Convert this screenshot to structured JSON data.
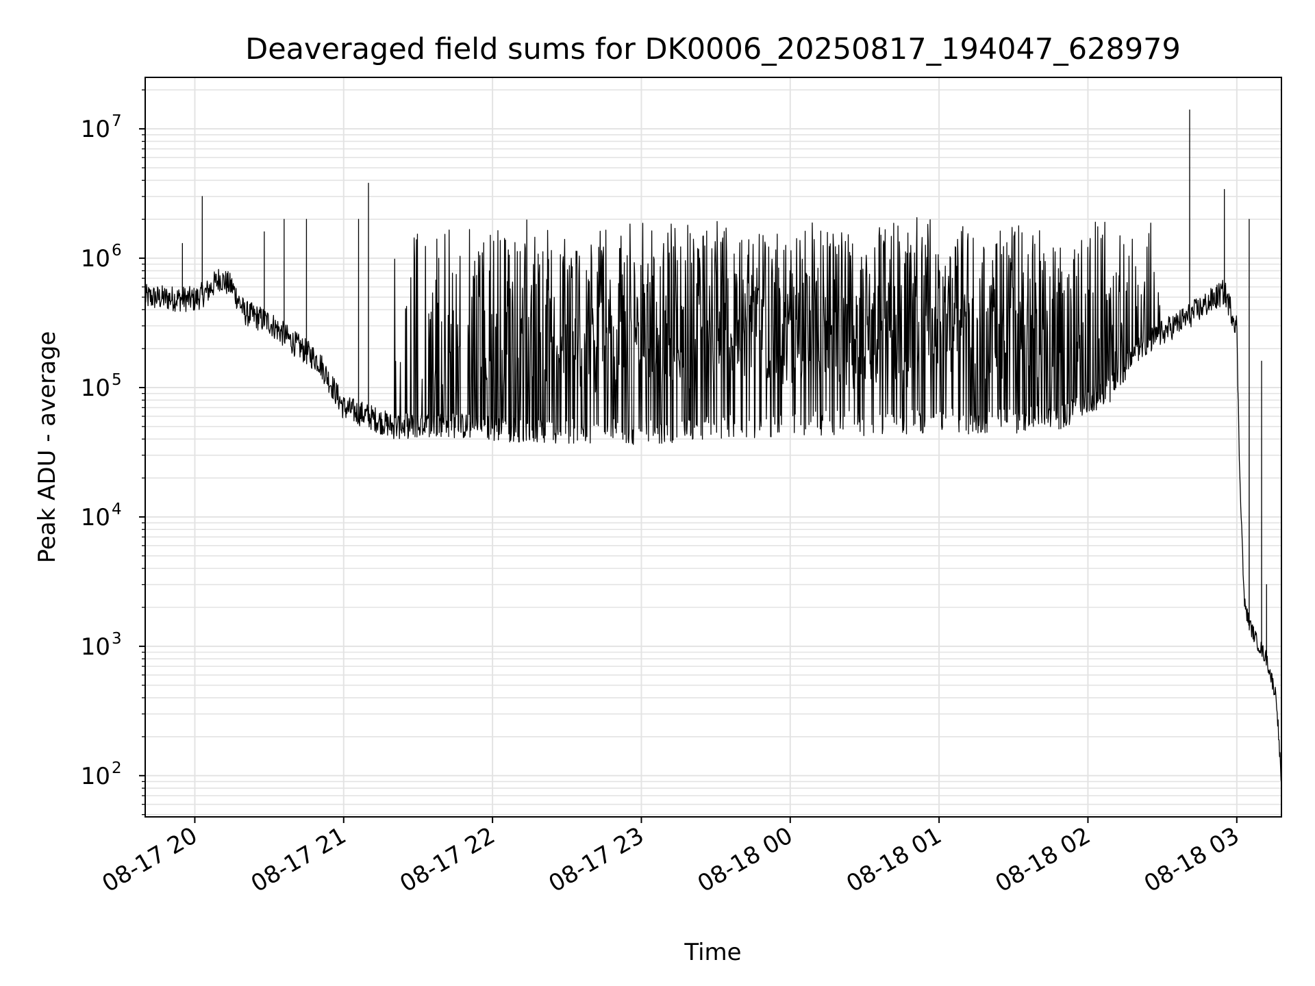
{
  "chart_data": {
    "type": "line",
    "title": "Deaveraged field sums for DK0006_20250817_194047_628979",
    "xlabel": "Time",
    "ylabel": "Peak ADU - average",
    "yscale": "log",
    "ylim": [
      48,
      25000000
    ],
    "xlim": [
      "2025-08-17 19:40",
      "2025-08-18 03:18"
    ],
    "grid": true,
    "line_color": "#000000",
    "grid_color": "#e3e3e3",
    "x_ticks": [
      {
        "label": "08-17 20",
        "time": "2025-08-17 20:00"
      },
      {
        "label": "08-17 21",
        "time": "2025-08-17 21:00"
      },
      {
        "label": "08-17 22",
        "time": "2025-08-17 22:00"
      },
      {
        "label": "08-17 23",
        "time": "2025-08-17 23:00"
      },
      {
        "label": "08-18 00",
        "time": "2025-08-18 00:00"
      },
      {
        "label": "08-18 01",
        "time": "2025-08-18 01:00"
      },
      {
        "label": "08-18 02",
        "time": "2025-08-18 02:00"
      },
      {
        "label": "08-18 03",
        "time": "2025-08-18 03:00"
      }
    ],
    "y_ticks": [
      {
        "base": "10",
        "exp": "2",
        "value": 100
      },
      {
        "base": "10",
        "exp": "3",
        "value": 1000
      },
      {
        "base": "10",
        "exp": "4",
        "value": 10000
      },
      {
        "base": "10",
        "exp": "5",
        "value": 100000
      },
      {
        "base": "10",
        "exp": "6",
        "value": 1000000
      },
      {
        "base": "10",
        "exp": "7",
        "value": 10000000
      }
    ],
    "series": [
      {
        "baseline": [
          [
            "2025-08-17 19:40",
            500000
          ],
          [
            "2025-08-17 20:00",
            480000
          ],
          [
            "2025-08-17 20:05",
            550000
          ],
          [
            "2025-08-17 20:10",
            700000
          ],
          [
            "2025-08-17 20:15",
            600000
          ],
          [
            "2025-08-17 20:20",
            380000
          ],
          [
            "2025-08-17 20:30",
            320000
          ],
          [
            "2025-08-17 20:40",
            220000
          ],
          [
            "2025-08-17 20:50",
            160000
          ],
          [
            "2025-08-17 21:00",
            70000
          ],
          [
            "2025-08-17 21:10",
            60000
          ],
          [
            "2025-08-17 21:20",
            50000
          ],
          [
            "2025-08-17 21:40",
            52000
          ],
          [
            "2025-08-17 22:00",
            48000
          ],
          [
            "2025-08-17 23:00",
            45000
          ],
          [
            "2025-08-18 00:00",
            52000
          ],
          [
            "2025-08-18 01:00",
            55000
          ],
          [
            "2025-08-18 01:30",
            55000
          ],
          [
            "2025-08-18 01:50",
            60000
          ],
          [
            "2025-08-18 02:10",
            100000
          ],
          [
            "2025-08-18 02:20",
            200000
          ],
          [
            "2025-08-18 02:40",
            350000
          ],
          [
            "2025-08-18 02:55",
            550000
          ],
          [
            "2025-08-18 03:00",
            300000
          ],
          [
            "2025-08-18 03:01",
            30000
          ],
          [
            "2025-08-18 03:02",
            8000
          ],
          [
            "2025-08-18 03:03",
            2200
          ],
          [
            "2025-08-18 03:05",
            1500
          ],
          [
            "2025-08-18 03:08",
            1100
          ],
          [
            "2025-08-18 03:12",
            800
          ],
          [
            "2025-08-18 03:16",
            400
          ],
          [
            "2025-08-18 03:18",
            85
          ]
        ],
        "spike_band": {
          "start": "2025-08-17 21:20",
          "end": "2025-08-18 02:30",
          "level": 1700000
        },
        "peaks": [
          [
            "2025-08-17 19:55",
            1300000
          ],
          [
            "2025-08-17 20:03",
            3000000
          ],
          [
            "2025-08-17 20:28",
            1600000
          ],
          [
            "2025-08-17 20:36",
            2000000
          ],
          [
            "2025-08-17 20:45",
            2000000
          ],
          [
            "2025-08-17 21:06",
            2000000
          ],
          [
            "2025-08-17 21:10",
            3800000
          ],
          [
            "2025-08-18 02:41",
            14000000
          ],
          [
            "2025-08-18 02:55",
            3400000
          ],
          [
            "2025-08-18 03:05",
            2000000
          ],
          [
            "2025-08-18 03:10",
            160000
          ],
          [
            "2025-08-18 03:12",
            3000
          ]
        ]
      }
    ]
  }
}
